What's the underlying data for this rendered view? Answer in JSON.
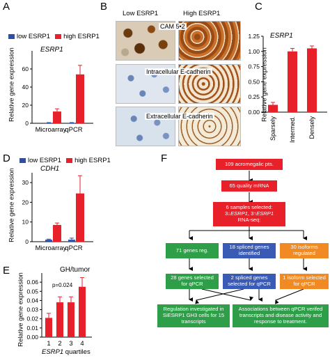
{
  "panels": {
    "A": {
      "letter": "A",
      "legend_low": "low ESRP1",
      "legend_high": "high ESRP1",
      "title": "ESRP1",
      "ylabel": "Relative gene expression"
    },
    "B": {
      "letter": "B",
      "col_low": "Low ESRP1",
      "col_high": "High ESRP1",
      "row1": "CAM 5•2",
      "row2": "Intracellular E-cadherin",
      "row3": "Extracellular E-cadherin"
    },
    "C": {
      "letter": "C",
      "title": "ESRP1",
      "ylabel": "Relative gene expression"
    },
    "D": {
      "letter": "D",
      "legend_low": "low ESRP1",
      "legend_high": "high ESRP1",
      "title": "CDH1",
      "ylabel": "Relative gene expression"
    },
    "E": {
      "letter": "E",
      "title": "GH/tumor",
      "pvalue": "p=0.024",
      "ylabel": "Relative gene expression",
      "xlabel": "ESRP1 quartiles"
    },
    "F": {
      "letter": "F",
      "box1": "109 acromegalic pts.",
      "box2": "65 quality mRNA",
      "box3_l1": "6 samples selected:",
      "box3_l2": "3↓ESRP1, 3↑ESRP1",
      "box3_l3": "RNA-seq:",
      "box4": "71 genes reg.",
      "box5": "18 spliced genes identified",
      "box6": "30 isoforms regulated",
      "box7": "28 genes selected for qPCR",
      "box8": "2 spliced genes selected for qPCR",
      "box9": "1 isoform selected for qPCR",
      "box10": "Regulation investigated in SiESRP1 GH3 cells for 15 transcripts",
      "box11": "Associations between qPCR verifed transcripts and disease activity and response to treatment."
    }
  },
  "colors": {
    "low": "#2f4ea3",
    "high": "#e8202a",
    "green": "#2e9e48",
    "blue": "#3a5bb5",
    "orange": "#f28a24",
    "red": "#e8202a"
  },
  "chart_data": [
    {
      "panel": "A",
      "type": "bar",
      "title": "ESRP1",
      "ylabel": "Relative gene expression",
      "categories": [
        "Microarray",
        "qPCR"
      ],
      "ylim": [
        0,
        80
      ],
      "yticks": [
        0,
        20,
        40,
        60
      ],
      "series": [
        {
          "name": "low ESRP1",
          "values": [
            0.5,
            0.5
          ],
          "errors": [
            0.3,
            0.3
          ]
        },
        {
          "name": "high ESRP1",
          "values": [
            13,
            54
          ],
          "errors": [
            3,
            10
          ]
        }
      ]
    },
    {
      "panel": "C",
      "type": "bar",
      "title": "ESRP1",
      "ylabel": "Relative gene expression",
      "categories": [
        "Sparsely",
        "Intermed.",
        "Densely"
      ],
      "ylim": [
        0,
        1.25
      ],
      "yticks": [
        0,
        0.25,
        0.5,
        0.75,
        1.0,
        1.25
      ],
      "values": [
        0.12,
        1.0,
        1.05
      ],
      "errors": [
        0.04,
        0.05,
        0.04
      ]
    },
    {
      "panel": "D",
      "type": "bar",
      "title": "CDH1",
      "ylabel": "Relative gene expression",
      "categories": [
        "Microarray",
        "qPCR"
      ],
      "ylim": [
        0,
        35
      ],
      "yticks": [
        0,
        10,
        20,
        30
      ],
      "series": [
        {
          "name": "low ESRP1",
          "values": [
            1,
            1
          ],
          "errors": [
            0.3,
            0.8
          ]
        },
        {
          "name": "high ESRP1",
          "values": [
            8.5,
            24.5
          ],
          "errors": [
            1,
            9
          ]
        }
      ]
    },
    {
      "panel": "E",
      "type": "bar",
      "title": "GH/tumor",
      "ylabel": "Relative gene expression",
      "xlabel": "ESRP1 quartiles",
      "categories": [
        "1",
        "2",
        "3",
        "4"
      ],
      "ylim": [
        0,
        0.07
      ],
      "yticks": [
        0,
        0.01,
        0.02,
        0.03,
        0.04,
        0.05,
        0.06
      ],
      "values": [
        0.021,
        0.038,
        0.038,
        0.055
      ],
      "errors": [
        0.005,
        0.006,
        0.006,
        0.01
      ]
    }
  ]
}
